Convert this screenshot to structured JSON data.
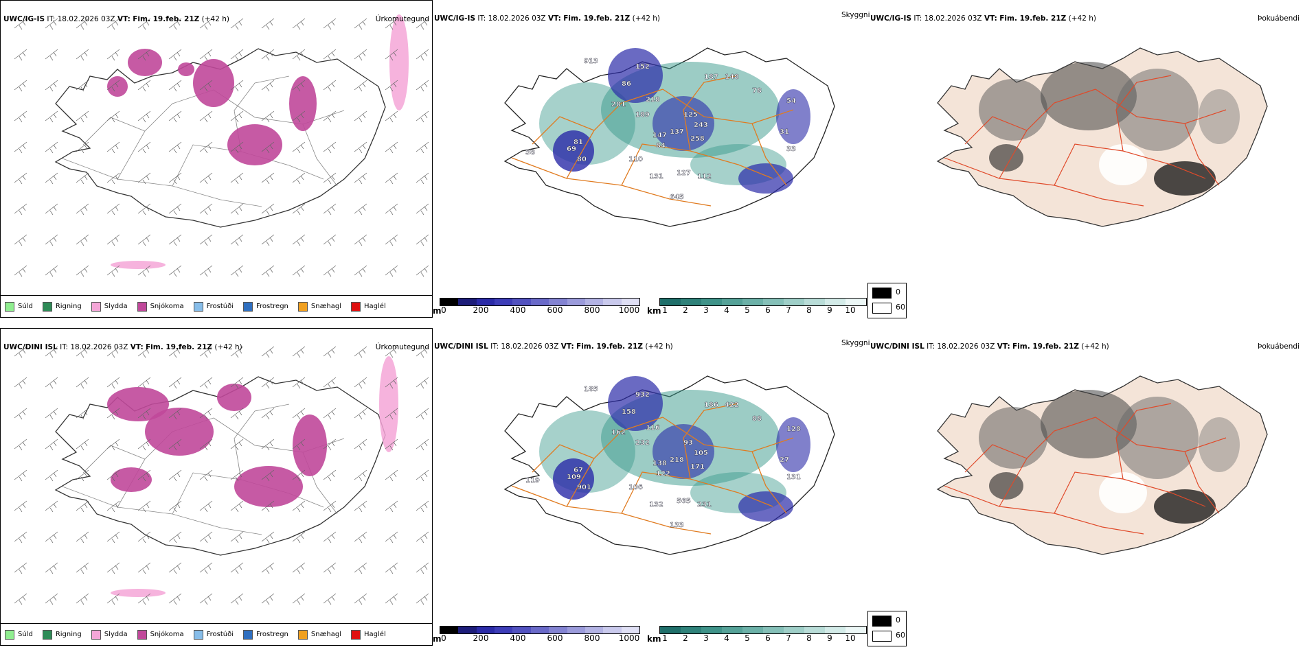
{
  "rows": [
    {
      "header": {
        "model": "UWC/IG-IS",
        "it_label": "IT:",
        "it_value": "18.02.2026 03Z",
        "vt_label": "VT:",
        "vt_value": "Fim. 19.feb. 21Z",
        "lead": "(+42 h)"
      },
      "precip_title": "Úrkomutegund",
      "cloud_title": "Skyggni",
      "fog_title": "Þokuábendi",
      "labels": [
        "913",
        "152",
        "86",
        "281",
        "218",
        "189",
        "125",
        "137",
        "84",
        "258",
        "243",
        "147",
        "81",
        "58",
        "80",
        "69",
        "110",
        "131",
        "127",
        "112",
        "645",
        "187",
        "148",
        "78",
        "54",
        "31",
        "33"
      ]
    },
    {
      "header": {
        "model": "UWC/DINI ISL",
        "it_label": "IT:",
        "it_value": "18.02.2026 03Z",
        "vt_label": "VT:",
        "vt_value": "Fim. 19.feb. 21Z",
        "lead": "(+42 h)"
      },
      "precip_title": "Úrkomutegund",
      "cloud_title": "Skyggni",
      "fog_title": "Þokuábendi",
      "labels": [
        "185",
        "932",
        "158",
        "162",
        "116",
        "232",
        "93",
        "218",
        "122",
        "171",
        "105",
        "138",
        "67",
        "119",
        "901",
        "109",
        "106",
        "132",
        "565",
        "231",
        "133",
        "186",
        "422",
        "88",
        "128",
        "27",
        "131"
      ]
    }
  ],
  "legend": [
    {
      "label": "Súld",
      "color": "#90ee90"
    },
    {
      "label": "Rigning",
      "color": "#2e8b57"
    },
    {
      "label": "Slydda",
      "color": "#f4a6d7"
    },
    {
      "label": "Snjókoma",
      "color": "#c0489a"
    },
    {
      "label": "Frostúði",
      "color": "#87bde9"
    },
    {
      "label": "Frostregn",
      "color": "#2f6fc0"
    },
    {
      "label": "Snæhagl",
      "color": "#f0a020"
    },
    {
      "label": "Haglél",
      "color": "#e01010"
    }
  ],
  "cloud_base": {
    "unit": "m",
    "ticks": [
      "0",
      "200",
      "400",
      "600",
      "800",
      "1000"
    ]
  },
  "visibility": {
    "unit": "km",
    "ticks": [
      "1",
      "2",
      "3",
      "4",
      "5",
      "6",
      "7",
      "8",
      "9",
      "10"
    ]
  },
  "fog_key": {
    "low": "0",
    "high": "60"
  },
  "colors": {
    "snow": "#c0489a",
    "sleet": "#f4a6d7",
    "rain": "#2e8b57",
    "cloud": "#2b2ba8",
    "vis": "#3a9a8c",
    "road": "#e07b20",
    "fogland": "#f4e4d8",
    "fogroad": "#e04a2a"
  }
}
